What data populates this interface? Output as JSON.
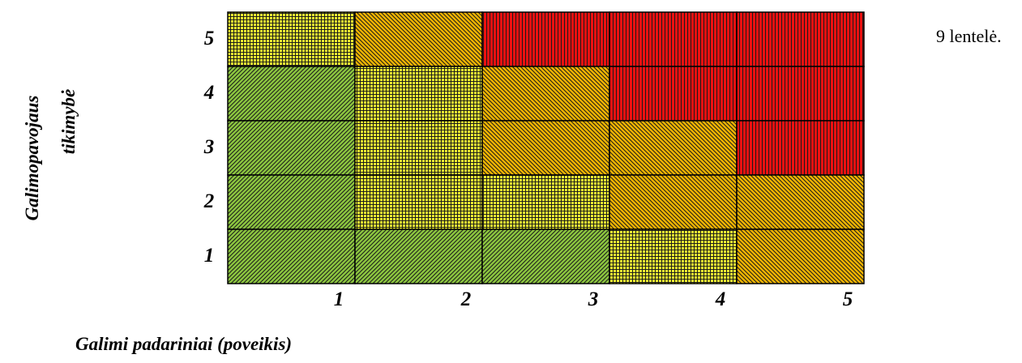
{
  "caption": "9 lentelė.",
  "chart_data": {
    "type": "heatmap",
    "xlabel": "Galimi padariniai (poveikis)",
    "ylabel_lines": [
      "Galimopavojaus",
      "tikimybė"
    ],
    "x_ticks": [
      "1",
      "2",
      "3",
      "4",
      "5"
    ],
    "y_ticks": [
      "1",
      "2",
      "3",
      "4",
      "5"
    ],
    "levels": {
      "green": "#8cc63f",
      "yellow": "#ffff33",
      "orange": "#f0b400",
      "red": "#ee1111"
    },
    "grid": [
      {
        "y": "5",
        "cells": [
          "yellow",
          "orange",
          "red",
          "red",
          "red"
        ]
      },
      {
        "y": "4",
        "cells": [
          "green",
          "yellow",
          "orange",
          "red",
          "red"
        ]
      },
      {
        "y": "3",
        "cells": [
          "green",
          "yellow",
          "orange",
          "orange",
          "red"
        ]
      },
      {
        "y": "2",
        "cells": [
          "green",
          "yellow",
          "yellow",
          "orange",
          "orange"
        ]
      },
      {
        "y": "1",
        "cells": [
          "green",
          "green",
          "green",
          "yellow",
          "orange"
        ]
      }
    ]
  }
}
